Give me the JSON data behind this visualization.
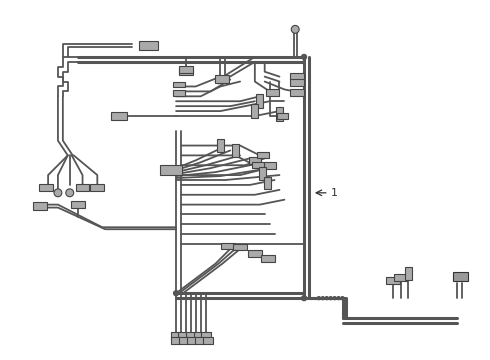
{
  "background_color": "#ffffff",
  "line_color": "#777777",
  "dark_color": "#555555",
  "lw_thin": 0.8,
  "lw_main": 1.3,
  "lw_thick": 2.2,
  "label_1": "1"
}
